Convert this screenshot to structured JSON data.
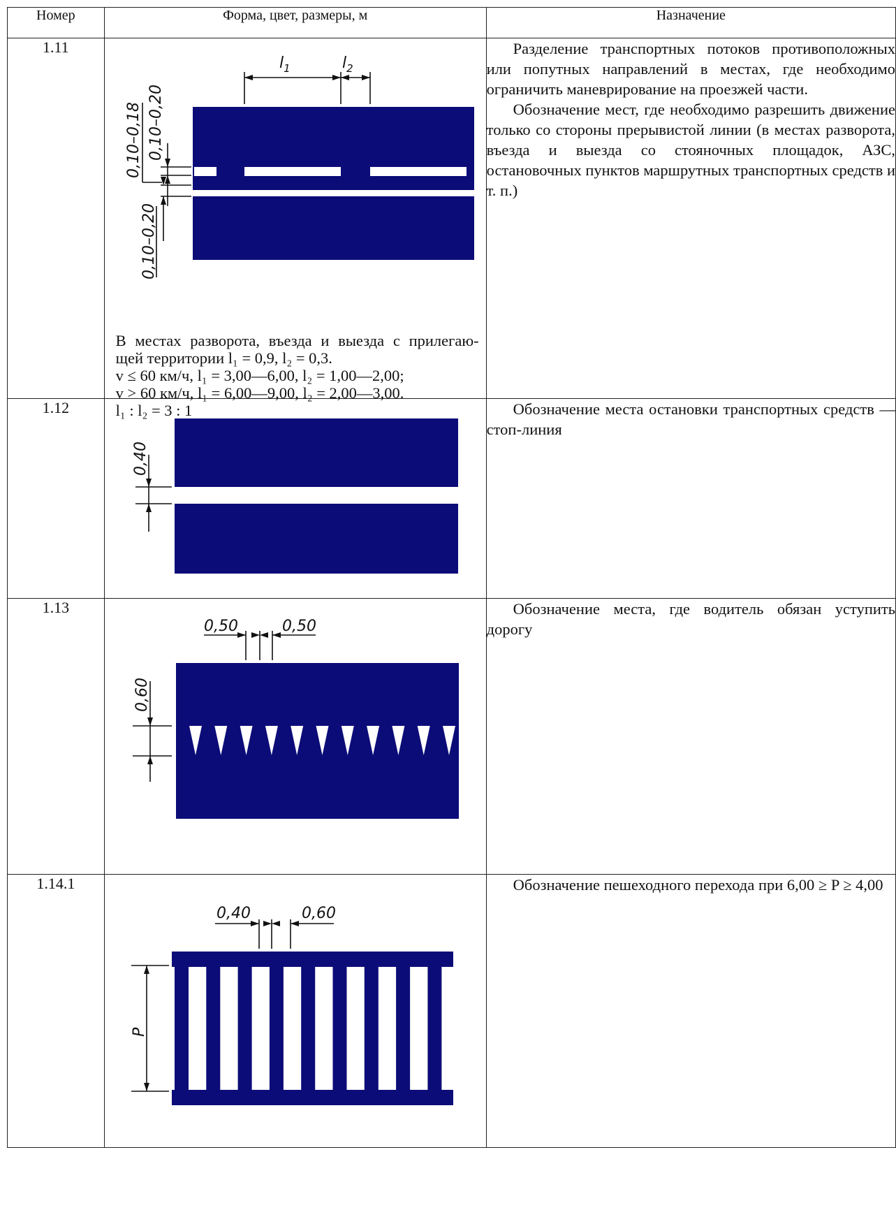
{
  "table": {
    "headers": [
      "Номер",
      "Форма, цвет, размеры, м",
      "Назначение"
    ],
    "rows": [
      {
        "number": "1.11",
        "dims": {
          "l1": "l",
          "l1_sub": "1",
          "l2": "l",
          "l2_sub": "2",
          "a": "0,10–0,18",
          "b": "0,10–0,20",
          "c": "0,10–0,20"
        },
        "note_lines": [
          "В местах разворота, въезда и выезда с прилегаю-",
          "щей территории l₁ = 0,9, l₂ = 0,3.",
          "v ≤ 60 км/ч, l₁ = 3,00—6,00, l₂ = 1,00—2,00;",
          "v > 60 км/ч, l₁ = 6,00—9,00, l₂ = 2,00—3,00.",
          "l₁ : l₂ = 3 : 1"
        ],
        "description": [
          "Разделение транспортных потоков противоположных или попутных направлений в местах, где необходимо ограничить маневрирование на проезжей части.",
          "Обозначение мест, где необходимо разрешить движение только со стороны прерывистой линии (в местах разворота, въезда и выезда со стояночных площадок, АЗС, остановочных пунктов маршрутных транспортных средств и т. п.)"
        ]
      },
      {
        "number": "1.12",
        "dims": {
          "a": "0,40"
        },
        "description": [
          "Обозначение места остановки транспортных средств — стоп-линия"
        ]
      },
      {
        "number": "1.13",
        "dims": {
          "a": "0,50",
          "b": "0,50",
          "c": "0,60"
        },
        "description": [
          "Обозначение места, где водитель обязан уступить дорогу"
        ]
      },
      {
        "number": "1.14.1",
        "dims": {
          "a": "0,40",
          "b": "0,60",
          "p": "P"
        },
        "description": [
          "Обозначение пешеходного перехода при 6,00 ≥ P ≥ 4,00"
        ]
      }
    ]
  },
  "colors": {
    "marking_fill": "#0c0c78",
    "line": "#111111",
    "paper": "#ffffff"
  }
}
